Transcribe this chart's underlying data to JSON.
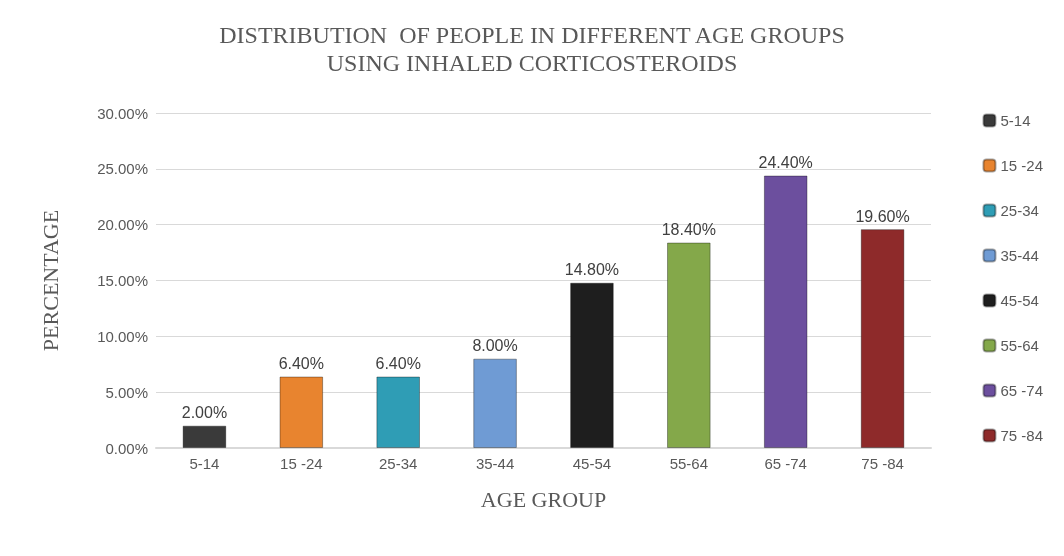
{
  "chart_data": {
    "type": "bar",
    "title": "DISTRIBUTION  OF PEOPLE IN DIFFERENT AGE GROUPS\nUSING INHALED CORTICOSTEROIDS",
    "xlabel": "AGE GROUP",
    "ylabel": "PERCENTAGE",
    "categories": [
      "5-14",
      "15 -24",
      "25-34",
      "35-44",
      "45-54",
      "55-64",
      "65 -74",
      "75 -84"
    ],
    "stacked": true,
    "series": [
      {
        "name": "5-14",
        "color": "#3a3a3a",
        "values": [
          2,
          null,
          null,
          null,
          null,
          null,
          null,
          null
        ],
        "value_labels": [
          "2.00%",
          null,
          null,
          null,
          null,
          null,
          null,
          null
        ]
      },
      {
        "name": "15 -24",
        "color": "#e8842f",
        "values": [
          null,
          6.4,
          null,
          null,
          null,
          null,
          null,
          null
        ],
        "value_labels": [
          null,
          "6.40%",
          null,
          null,
          null,
          null,
          null,
          null
        ]
      },
      {
        "name": "25-34",
        "color": "#2f9db5",
        "values": [
          null,
          null,
          6.4,
          null,
          null,
          null,
          null,
          null
        ],
        "value_labels": [
          null,
          null,
          "6.40%",
          null,
          null,
          null,
          null,
          null
        ]
      },
      {
        "name": "35-44",
        "color": "#6f9bd4",
        "values": [
          null,
          null,
          null,
          8,
          null,
          null,
          null,
          null
        ],
        "value_labels": [
          null,
          null,
          null,
          "8.00%",
          null,
          null,
          null,
          null
        ]
      },
      {
        "name": "45-54",
        "color": "#1e1e1e",
        "values": [
          null,
          null,
          null,
          null,
          14.8,
          null,
          null,
          null
        ],
        "value_labels": [
          null,
          null,
          null,
          null,
          "14.80%",
          null,
          null,
          null
        ]
      },
      {
        "name": "55-64",
        "color": "#84a84a",
        "values": [
          null,
          null,
          null,
          null,
          null,
          18.4,
          null,
          null
        ],
        "value_labels": [
          null,
          null,
          null,
          null,
          null,
          "18.40%",
          null,
          null
        ]
      },
      {
        "name": "65 -74",
        "color": "#6c4f9e",
        "values": [
          null,
          null,
          null,
          null,
          null,
          null,
          24.4,
          null
        ],
        "value_labels": [
          null,
          null,
          null,
          null,
          null,
          null,
          "24.40%",
          null
        ]
      },
      {
        "name": "75 -84",
        "color": "#8e2a2a",
        "values": [
          null,
          null,
          null,
          null,
          null,
          null,
          null,
          19.6
        ],
        "value_labels": [
          null,
          null,
          null,
          null,
          null,
          null,
          null,
          "19.60%"
        ]
      }
    ],
    "ylim": [
      0,
      30
    ],
    "yticks": [
      {
        "value": 0,
        "label": "0.00%"
      },
      {
        "value": 5,
        "label": "5.00%"
      },
      {
        "value": 10,
        "label": "10.00%"
      },
      {
        "value": 15,
        "label": "15.00%"
      },
      {
        "value": 20,
        "label": "20.00%"
      },
      {
        "value": 25,
        "label": "25.00%"
      },
      {
        "value": 30,
        "label": "30.00%"
      }
    ],
    "grid": "y",
    "legend": "right"
  }
}
